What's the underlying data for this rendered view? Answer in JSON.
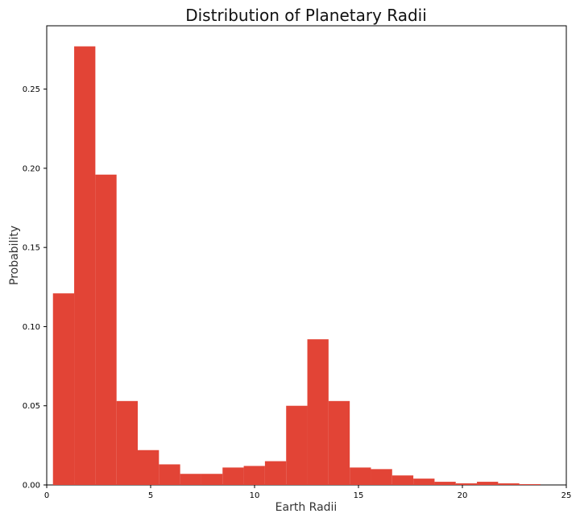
{
  "chart_data": {
    "type": "bar",
    "title": "Distribution of Planetary Radii",
    "xlabel": "Earth Radii",
    "ylabel": "Probability",
    "xlim": [
      0,
      25
    ],
    "ylim": [
      0,
      0.29
    ],
    "xticks": [
      0,
      5,
      10,
      15,
      20,
      25
    ],
    "xtick_labels": [
      "0",
      "5",
      "10",
      "15",
      "20",
      "25"
    ],
    "yticks": [
      0.0,
      0.05,
      0.1,
      0.15,
      0.2,
      0.25
    ],
    "ytick_labels": [
      "0.00",
      "0.05",
      "0.10",
      "0.15",
      "0.20",
      "0.25"
    ],
    "bin_edges": [
      0.3,
      1.32,
      2.34,
      3.36,
      4.38,
      5.4,
      6.42,
      7.44,
      8.46,
      9.48,
      10.5,
      11.52,
      12.54,
      13.56,
      14.58,
      15.6,
      16.62,
      17.64,
      18.66,
      19.68,
      20.7,
      21.72,
      22.74,
      23.76
    ],
    "values": [
      0.121,
      0.277,
      0.196,
      0.053,
      0.022,
      0.013,
      0.007,
      0.007,
      0.011,
      0.012,
      0.015,
      0.05,
      0.092,
      0.053,
      0.011,
      0.01,
      0.006,
      0.004,
      0.002,
      0.001,
      0.002,
      0.001,
      0.0005
    ],
    "bar_color": "#e24436",
    "grid": false,
    "legend": "none"
  }
}
